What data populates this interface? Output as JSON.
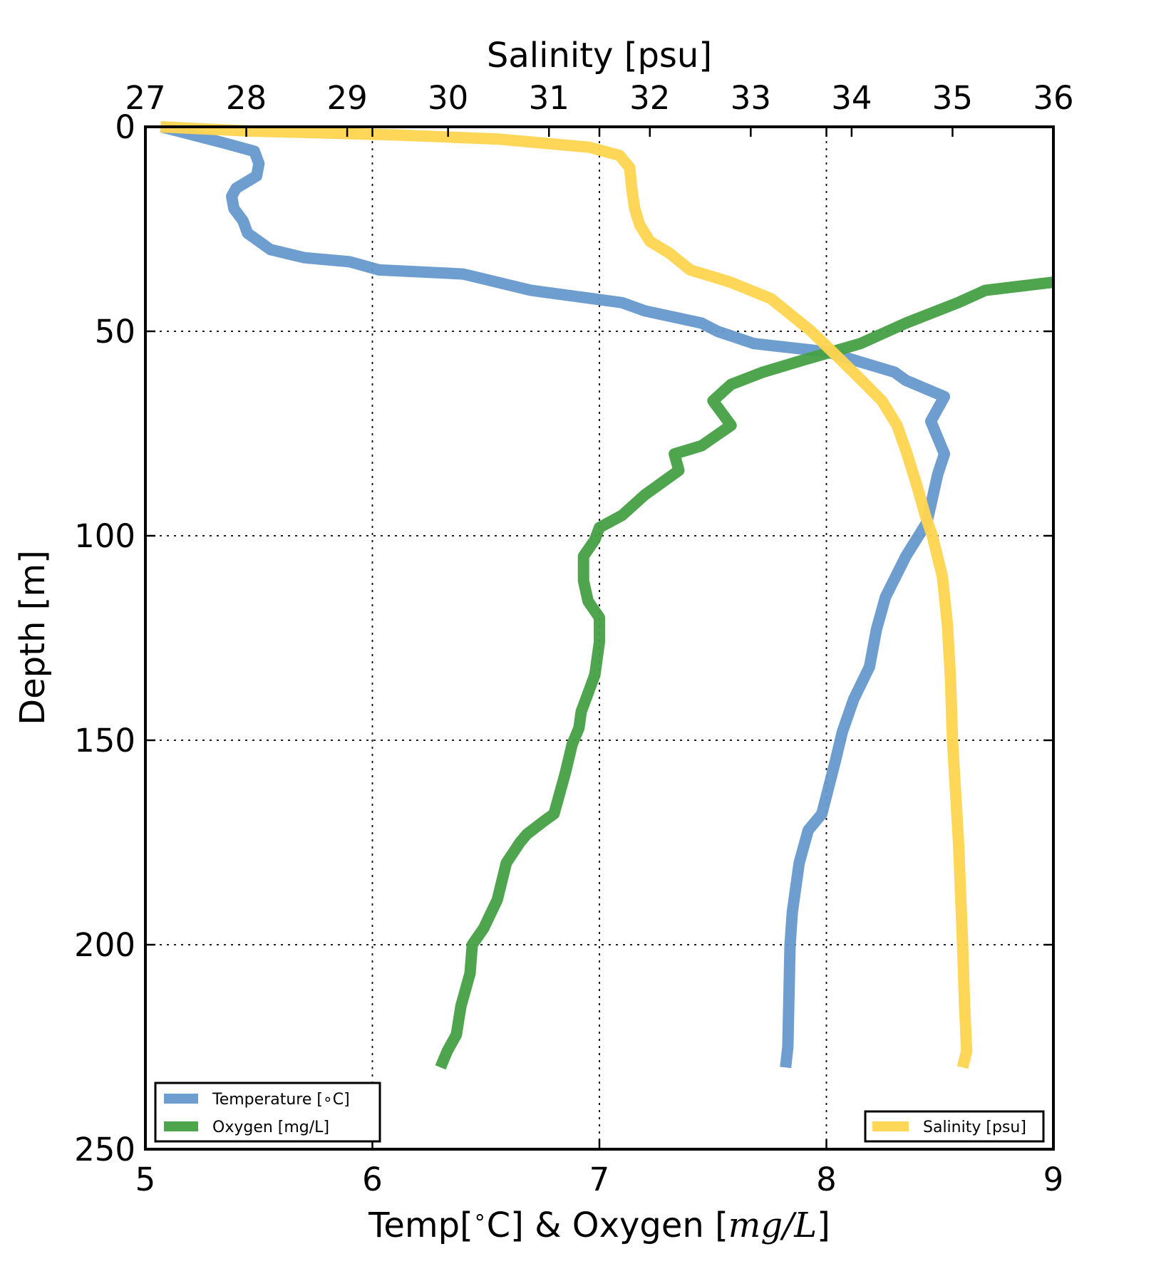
{
  "chart_data": {
    "type": "line",
    "title": "",
    "bottom_axis": {
      "label_text": "Temp[",
      "label_degree": "∘",
      "label_text2": "C] & Oxygen [",
      "label_math": "mg/L",
      "label_end": "]",
      "range": [
        5,
        9
      ],
      "ticks": [
        5,
        6,
        7,
        8,
        9
      ]
    },
    "top_axis": {
      "label": "Salinity [psu]",
      "range": [
        27,
        36
      ],
      "ticks": [
        27,
        28,
        29,
        30,
        31,
        32,
        33,
        34,
        35,
        36
      ]
    },
    "left_axis": {
      "label": "Depth [m]",
      "range": [
        0,
        250
      ],
      "inverted": true,
      "ticks": [
        0,
        50,
        100,
        150,
        200,
        250
      ]
    },
    "grid": true,
    "series": [
      {
        "name": "Temperature [∘C]",
        "axis": "bottom",
        "color": "#6699cc",
        "points": [
          [
            5.07,
            0
          ],
          [
            5.35,
            4
          ],
          [
            5.48,
            6
          ],
          [
            5.5,
            9
          ],
          [
            5.49,
            12
          ],
          [
            5.4,
            15
          ],
          [
            5.38,
            17
          ],
          [
            5.39,
            20
          ],
          [
            5.43,
            23
          ],
          [
            5.45,
            26
          ],
          [
            5.5,
            28
          ],
          [
            5.55,
            30
          ],
          [
            5.7,
            32
          ],
          [
            5.9,
            33
          ],
          [
            6.03,
            35
          ],
          [
            6.4,
            36
          ],
          [
            6.55,
            38
          ],
          [
            6.7,
            40
          ],
          [
            7.1,
            43
          ],
          [
            7.2,
            45
          ],
          [
            7.45,
            48
          ],
          [
            7.52,
            50
          ],
          [
            7.68,
            53
          ],
          [
            8.0,
            55
          ],
          [
            8.3,
            60
          ],
          [
            8.35,
            62
          ],
          [
            8.52,
            66
          ],
          [
            8.46,
            72
          ],
          [
            8.52,
            80
          ],
          [
            8.49,
            85
          ],
          [
            8.45,
            95
          ],
          [
            8.44,
            97
          ],
          [
            8.35,
            105
          ],
          [
            8.26,
            115
          ],
          [
            8.22,
            123
          ],
          [
            8.19,
            132
          ],
          [
            8.12,
            140
          ],
          [
            8.07,
            148
          ],
          [
            8.04,
            155
          ],
          [
            7.98,
            168
          ],
          [
            7.92,
            172
          ],
          [
            7.88,
            180
          ],
          [
            7.85,
            192
          ],
          [
            7.84,
            200
          ],
          [
            7.83,
            225
          ],
          [
            7.82,
            230
          ]
        ]
      },
      {
        "name": "Oxygen [mg/L]",
        "axis": "bottom",
        "color": "#44a044",
        "points": [
          [
            9.0,
            38
          ],
          [
            8.7,
            40
          ],
          [
            8.58,
            43
          ],
          [
            8.35,
            48
          ],
          [
            8.15,
            53
          ],
          [
            7.9,
            57
          ],
          [
            7.72,
            60
          ],
          [
            7.58,
            63
          ],
          [
            7.5,
            67
          ],
          [
            7.58,
            73
          ],
          [
            7.45,
            78
          ],
          [
            7.33,
            80
          ],
          [
            7.35,
            84
          ],
          [
            7.2,
            90
          ],
          [
            7.1,
            95
          ],
          [
            7.0,
            98
          ],
          [
            6.98,
            101
          ],
          [
            6.93,
            105
          ],
          [
            6.93,
            111
          ],
          [
            6.95,
            116
          ],
          [
            7.0,
            120
          ],
          [
            7.0,
            126
          ],
          [
            6.98,
            134
          ],
          [
            6.94,
            140
          ],
          [
            6.92,
            143
          ],
          [
            6.91,
            147
          ],
          [
            6.88,
            151
          ],
          [
            6.85,
            158
          ],
          [
            6.82,
            164
          ],
          [
            6.8,
            168
          ],
          [
            6.75,
            170
          ],
          [
            6.68,
            173
          ],
          [
            6.65,
            175
          ],
          [
            6.59,
            180
          ],
          [
            6.55,
            189
          ],
          [
            6.49,
            196
          ],
          [
            6.44,
            200
          ],
          [
            6.43,
            207
          ],
          [
            6.39,
            215
          ],
          [
            6.37,
            222
          ],
          [
            6.33,
            226
          ],
          [
            6.3,
            230
          ]
        ]
      },
      {
        "name": "Salinity [psu]",
        "axis": "top",
        "color": "#ffd54f",
        "points": [
          [
            27.15,
            0
          ],
          [
            28.0,
            1
          ],
          [
            29.5,
            2
          ],
          [
            30.5,
            3
          ],
          [
            31.4,
            5
          ],
          [
            31.7,
            7
          ],
          [
            31.8,
            10
          ],
          [
            31.82,
            15
          ],
          [
            31.85,
            20
          ],
          [
            31.9,
            24
          ],
          [
            32.0,
            28
          ],
          [
            32.2,
            31
          ],
          [
            32.4,
            35
          ],
          [
            32.8,
            38
          ],
          [
            33.2,
            42
          ],
          [
            33.35,
            45
          ],
          [
            33.6,
            50
          ],
          [
            33.85,
            56
          ],
          [
            34.1,
            62
          ],
          [
            34.3,
            67
          ],
          [
            34.45,
            73
          ],
          [
            34.55,
            80
          ],
          [
            34.65,
            88
          ],
          [
            34.73,
            95
          ],
          [
            34.8,
            100
          ],
          [
            34.9,
            110
          ],
          [
            34.95,
            122
          ],
          [
            34.98,
            135
          ],
          [
            35.0,
            150
          ],
          [
            35.06,
            175
          ],
          [
            35.1,
            200
          ],
          [
            35.12,
            215
          ],
          [
            35.14,
            226
          ],
          [
            35.1,
            230
          ]
        ]
      }
    ],
    "legends": [
      {
        "position": "lower-left",
        "entries": [
          "Temperature [∘C]",
          "Oxygen [mg/L]"
        ]
      },
      {
        "position": "lower-right",
        "entries": [
          "Salinity [psu]"
        ]
      }
    ]
  }
}
